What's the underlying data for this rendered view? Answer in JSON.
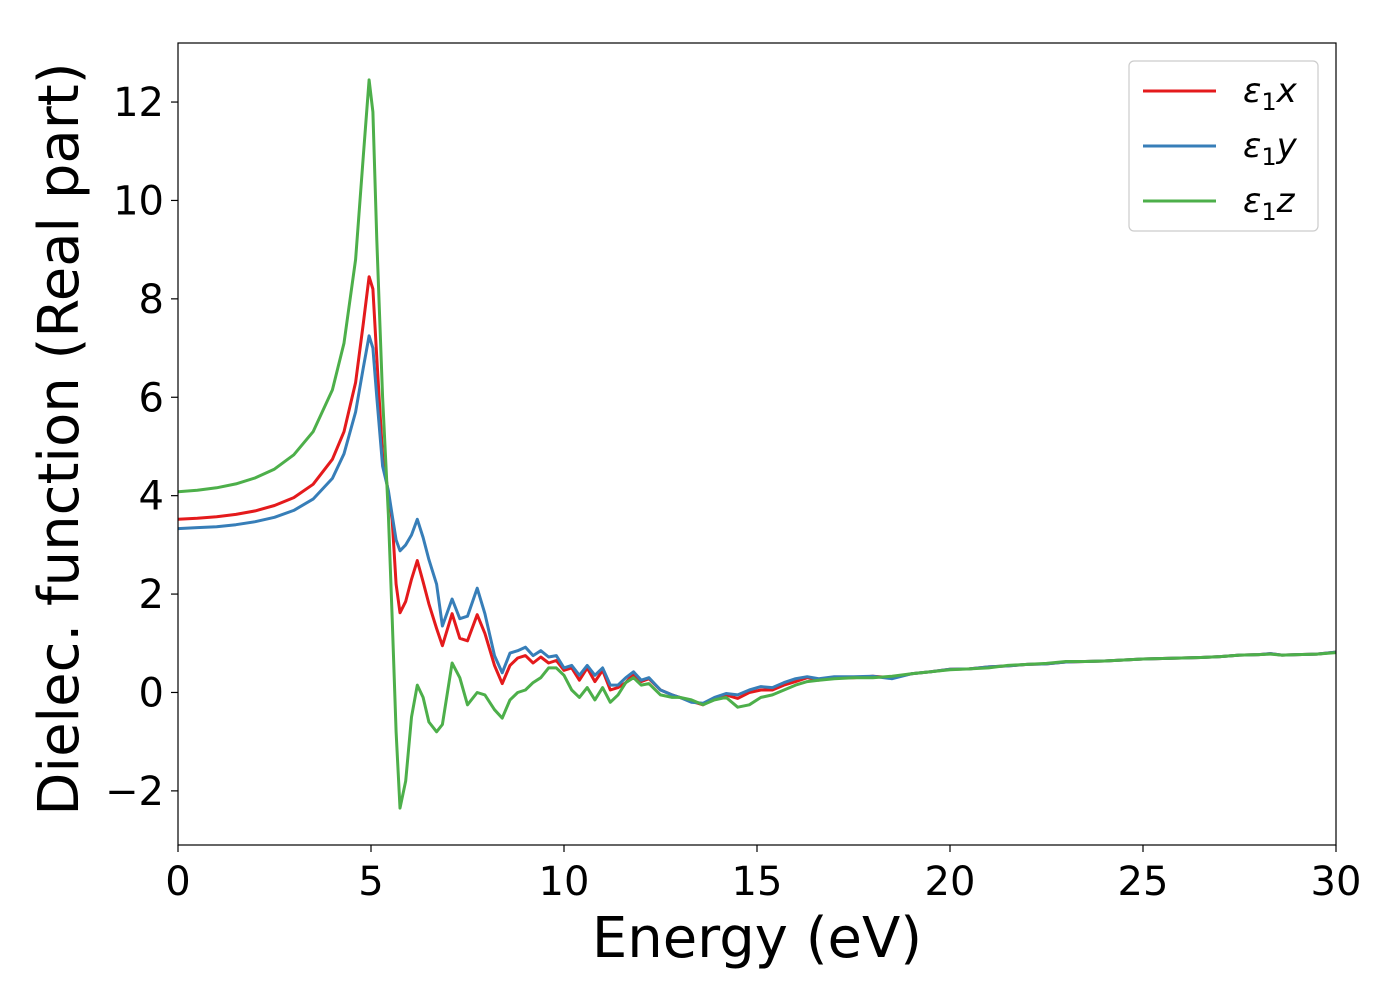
{
  "chart_data": {
    "type": "line",
    "title": "",
    "xlabel": "Energy (eV)",
    "ylabel": "Dielec. function (Real part)",
    "xlim": [
      0,
      30
    ],
    "ylim": [
      -3.1,
      13.2
    ],
    "xticks": [
      0,
      5,
      10,
      15,
      20,
      25,
      30
    ],
    "xtick_labels": [
      "0",
      "5",
      "10",
      "15",
      "20",
      "25",
      "30"
    ],
    "yticks": [
      -2,
      0,
      2,
      4,
      6,
      8,
      10,
      12
    ],
    "ytick_labels": [
      "−2",
      "0",
      "2",
      "4",
      "6",
      "8",
      "10",
      "12"
    ],
    "grid": false,
    "legend_position": "top-right",
    "series": [
      {
        "name": "ε1x",
        "legend_base": "ε",
        "legend_sub": "1",
        "legend_suffix": "x",
        "color": "#e41a1c",
        "points": [
          [
            0,
            3.52
          ],
          [
            0.5,
            3.54
          ],
          [
            1,
            3.57
          ],
          [
            1.5,
            3.62
          ],
          [
            2,
            3.69
          ],
          [
            2.5,
            3.8
          ],
          [
            3,
            3.96
          ],
          [
            3.5,
            4.23
          ],
          [
            4,
            4.74
          ],
          [
            4.3,
            5.3
          ],
          [
            4.6,
            6.3
          ],
          [
            4.8,
            7.5
          ],
          [
            4.95,
            8.45
          ],
          [
            5.05,
            8.2
          ],
          [
            5.15,
            6.8
          ],
          [
            5.3,
            4.8
          ],
          [
            5.45,
            4.05
          ],
          [
            5.55,
            3.5
          ],
          [
            5.65,
            2.2
          ],
          [
            5.75,
            1.62
          ],
          [
            5.9,
            1.85
          ],
          [
            6.05,
            2.3
          ],
          [
            6.2,
            2.68
          ],
          [
            6.35,
            2.25
          ],
          [
            6.5,
            1.8
          ],
          [
            6.7,
            1.3
          ],
          [
            6.85,
            0.95
          ],
          [
            7.1,
            1.6
          ],
          [
            7.3,
            1.1
          ],
          [
            7.5,
            1.05
          ],
          [
            7.75,
            1.58
          ],
          [
            7.95,
            1.2
          ],
          [
            8.2,
            0.55
          ],
          [
            8.4,
            0.18
          ],
          [
            8.6,
            0.55
          ],
          [
            8.8,
            0.7
          ],
          [
            9,
            0.75
          ],
          [
            9.2,
            0.6
          ],
          [
            9.4,
            0.72
          ],
          [
            9.6,
            0.6
          ],
          [
            9.8,
            0.65
          ],
          [
            10,
            0.45
          ],
          [
            10.2,
            0.5
          ],
          [
            10.4,
            0.25
          ],
          [
            10.6,
            0.5
          ],
          [
            10.8,
            0.22
          ],
          [
            11,
            0.45
          ],
          [
            11.2,
            0.05
          ],
          [
            11.4,
            0.1
          ],
          [
            11.6,
            0.2
          ],
          [
            11.8,
            0.38
          ],
          [
            12,
            0.22
          ],
          [
            12.2,
            0.28
          ],
          [
            12.5,
            0.05
          ],
          [
            12.8,
            -0.05
          ],
          [
            13,
            -0.1
          ],
          [
            13.3,
            -0.18
          ],
          [
            13.6,
            -0.25
          ],
          [
            13.9,
            -0.12
          ],
          [
            14.2,
            -0.05
          ],
          [
            14.5,
            -0.12
          ],
          [
            14.8,
            0
          ],
          [
            15.1,
            0.05
          ],
          [
            15.4,
            0.05
          ],
          [
            15.7,
            0.15
          ],
          [
            16,
            0.22
          ],
          [
            16.3,
            0.3
          ],
          [
            16.6,
            0.25
          ],
          [
            17,
            0.3
          ],
          [
            17.5,
            0.3
          ],
          [
            18,
            0.33
          ],
          [
            18.5,
            0.3
          ],
          [
            19,
            0.38
          ],
          [
            19.5,
            0.42
          ],
          [
            20,
            0.47
          ],
          [
            20.5,
            0.48
          ],
          [
            21,
            0.52
          ],
          [
            21.5,
            0.54
          ],
          [
            22,
            0.57
          ],
          [
            22.5,
            0.58
          ],
          [
            23,
            0.62
          ],
          [
            23.5,
            0.63
          ],
          [
            24,
            0.64
          ],
          [
            24.5,
            0.66
          ],
          [
            25,
            0.68
          ],
          [
            25.5,
            0.69
          ],
          [
            26,
            0.7
          ],
          [
            26.5,
            0.71
          ],
          [
            27,
            0.73
          ],
          [
            27.5,
            0.76
          ],
          [
            28,
            0.77
          ],
          [
            28.3,
            0.79
          ],
          [
            28.6,
            0.76
          ],
          [
            29,
            0.77
          ],
          [
            29.5,
            0.78
          ],
          [
            30,
            0.82
          ]
        ]
      },
      {
        "name": "ε1y",
        "legend_base": "ε",
        "legend_sub": "1",
        "legend_suffix": "y",
        "color": "#377eb8",
        "points": [
          [
            0,
            3.33
          ],
          [
            0.5,
            3.35
          ],
          [
            1,
            3.37
          ],
          [
            1.5,
            3.41
          ],
          [
            2,
            3.47
          ],
          [
            2.5,
            3.56
          ],
          [
            3,
            3.7
          ],
          [
            3.5,
            3.93
          ],
          [
            4,
            4.35
          ],
          [
            4.3,
            4.85
          ],
          [
            4.6,
            5.7
          ],
          [
            4.8,
            6.6
          ],
          [
            4.95,
            7.25
          ],
          [
            5.05,
            7.0
          ],
          [
            5.15,
            6.0
          ],
          [
            5.3,
            4.6
          ],
          [
            5.45,
            4.1
          ],
          [
            5.55,
            3.6
          ],
          [
            5.65,
            3.1
          ],
          [
            5.75,
            2.88
          ],
          [
            5.9,
            3.0
          ],
          [
            6.05,
            3.2
          ],
          [
            6.2,
            3.52
          ],
          [
            6.35,
            3.15
          ],
          [
            6.5,
            2.7
          ],
          [
            6.7,
            2.2
          ],
          [
            6.85,
            1.35
          ],
          [
            7.1,
            1.9
          ],
          [
            7.3,
            1.5
          ],
          [
            7.5,
            1.55
          ],
          [
            7.75,
            2.12
          ],
          [
            7.95,
            1.6
          ],
          [
            8.2,
            0.75
          ],
          [
            8.4,
            0.4
          ],
          [
            8.6,
            0.8
          ],
          [
            8.8,
            0.85
          ],
          [
            9,
            0.92
          ],
          [
            9.2,
            0.75
          ],
          [
            9.4,
            0.85
          ],
          [
            9.6,
            0.72
          ],
          [
            9.8,
            0.75
          ],
          [
            10,
            0.5
          ],
          [
            10.2,
            0.55
          ],
          [
            10.4,
            0.35
          ],
          [
            10.6,
            0.55
          ],
          [
            10.8,
            0.35
          ],
          [
            11,
            0.5
          ],
          [
            11.2,
            0.15
          ],
          [
            11.4,
            0.15
          ],
          [
            11.6,
            0.3
          ],
          [
            11.8,
            0.42
          ],
          [
            12,
            0.25
          ],
          [
            12.2,
            0.3
          ],
          [
            12.5,
            0.05
          ],
          [
            12.8,
            -0.05
          ],
          [
            13,
            -0.1
          ],
          [
            13.3,
            -0.2
          ],
          [
            13.6,
            -0.22
          ],
          [
            13.9,
            -0.1
          ],
          [
            14.2,
            -0.02
          ],
          [
            14.5,
            -0.05
          ],
          [
            14.8,
            0.05
          ],
          [
            15.1,
            0.12
          ],
          [
            15.4,
            0.1
          ],
          [
            15.7,
            0.2
          ],
          [
            16,
            0.28
          ],
          [
            16.3,
            0.32
          ],
          [
            16.6,
            0.28
          ],
          [
            17,
            0.32
          ],
          [
            17.5,
            0.32
          ],
          [
            18,
            0.33
          ],
          [
            18.5,
            0.28
          ],
          [
            19,
            0.38
          ],
          [
            19.5,
            0.42
          ],
          [
            20,
            0.47
          ],
          [
            20.5,
            0.48
          ],
          [
            21,
            0.52
          ],
          [
            21.5,
            0.54
          ],
          [
            22,
            0.57
          ],
          [
            22.5,
            0.58
          ],
          [
            23,
            0.62
          ],
          [
            23.5,
            0.63
          ],
          [
            24,
            0.64
          ],
          [
            24.5,
            0.66
          ],
          [
            25,
            0.68
          ],
          [
            25.5,
            0.69
          ],
          [
            26,
            0.7
          ],
          [
            26.5,
            0.71
          ],
          [
            27,
            0.73
          ],
          [
            27.5,
            0.76
          ],
          [
            28,
            0.77
          ],
          [
            28.3,
            0.79
          ],
          [
            28.6,
            0.76
          ],
          [
            29,
            0.77
          ],
          [
            29.5,
            0.78
          ],
          [
            30,
            0.82
          ]
        ]
      },
      {
        "name": "ε1z",
        "legend_base": "ε",
        "legend_sub": "1",
        "legend_suffix": "z",
        "color": "#4daf4a",
        "points": [
          [
            0,
            4.08
          ],
          [
            0.5,
            4.11
          ],
          [
            1,
            4.16
          ],
          [
            1.5,
            4.24
          ],
          [
            2,
            4.36
          ],
          [
            2.5,
            4.54
          ],
          [
            3,
            4.83
          ],
          [
            3.5,
            5.3
          ],
          [
            4,
            6.15
          ],
          [
            4.3,
            7.1
          ],
          [
            4.6,
            8.8
          ],
          [
            4.8,
            10.9
          ],
          [
            4.95,
            12.45
          ],
          [
            5.05,
            11.8
          ],
          [
            5.15,
            9.2
          ],
          [
            5.3,
            6.0
          ],
          [
            5.45,
            3.6
          ],
          [
            5.55,
            1.5
          ],
          [
            5.65,
            -0.8
          ],
          [
            5.75,
            -2.35
          ],
          [
            5.9,
            -1.8
          ],
          [
            6.05,
            -0.5
          ],
          [
            6.2,
            0.15
          ],
          [
            6.35,
            -0.1
          ],
          [
            6.5,
            -0.6
          ],
          [
            6.7,
            -0.8
          ],
          [
            6.85,
            -0.65
          ],
          [
            7.1,
            0.6
          ],
          [
            7.3,
            0.3
          ],
          [
            7.5,
            -0.25
          ],
          [
            7.75,
            0
          ],
          [
            7.95,
            -0.05
          ],
          [
            8.2,
            -0.35
          ],
          [
            8.4,
            -0.52
          ],
          [
            8.6,
            -0.15
          ],
          [
            8.8,
            0.0
          ],
          [
            9,
            0.05
          ],
          [
            9.2,
            0.2
          ],
          [
            9.4,
            0.3
          ],
          [
            9.6,
            0.5
          ],
          [
            9.8,
            0.5
          ],
          [
            10,
            0.35
          ],
          [
            10.2,
            0.05
          ],
          [
            10.4,
            -0.1
          ],
          [
            10.6,
            0.1
          ],
          [
            10.8,
            -0.15
          ],
          [
            11,
            0.1
          ],
          [
            11.2,
            -0.2
          ],
          [
            11.4,
            -0.05
          ],
          [
            11.6,
            0.2
          ],
          [
            11.8,
            0.3
          ],
          [
            12,
            0.15
          ],
          [
            12.2,
            0.18
          ],
          [
            12.5,
            -0.05
          ],
          [
            12.8,
            -0.1
          ],
          [
            13,
            -0.1
          ],
          [
            13.3,
            -0.15
          ],
          [
            13.6,
            -0.25
          ],
          [
            13.9,
            -0.15
          ],
          [
            14.2,
            -0.1
          ],
          [
            14.5,
            -0.3
          ],
          [
            14.8,
            -0.25
          ],
          [
            15.1,
            -0.1
          ],
          [
            15.4,
            -0.05
          ],
          [
            15.7,
            0.05
          ],
          [
            16,
            0.15
          ],
          [
            16.3,
            0.22
          ],
          [
            16.6,
            0.25
          ],
          [
            17,
            0.28
          ],
          [
            17.5,
            0.3
          ],
          [
            18,
            0.3
          ],
          [
            18.5,
            0.33
          ],
          [
            19,
            0.38
          ],
          [
            19.5,
            0.42
          ],
          [
            20,
            0.46
          ],
          [
            20.5,
            0.48
          ],
          [
            21,
            0.5
          ],
          [
            21.5,
            0.55
          ],
          [
            22,
            0.57
          ],
          [
            22.5,
            0.59
          ],
          [
            23,
            0.63
          ],
          [
            23.5,
            0.63
          ],
          [
            24,
            0.64
          ],
          [
            24.5,
            0.66
          ],
          [
            25,
            0.68
          ],
          [
            25.5,
            0.69
          ],
          [
            26,
            0.7
          ],
          [
            26.5,
            0.71
          ],
          [
            27,
            0.73
          ],
          [
            27.5,
            0.76
          ],
          [
            28,
            0.77
          ],
          [
            28.3,
            0.78
          ],
          [
            28.6,
            0.76
          ],
          [
            29,
            0.77
          ],
          [
            29.5,
            0.78
          ],
          [
            30,
            0.81
          ]
        ]
      }
    ]
  }
}
